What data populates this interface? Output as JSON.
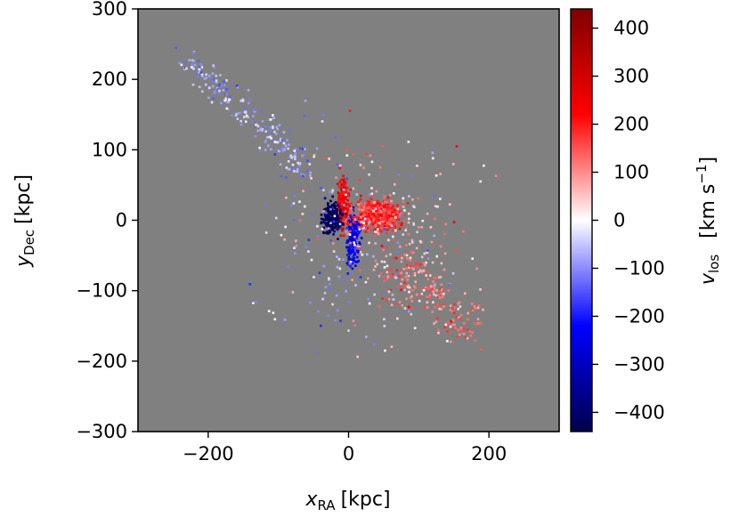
{
  "chart_data": {
    "type": "heatmap",
    "title": "",
    "xlabel": {
      "main": "x",
      "sub": "RA",
      "unit": "[kpc]"
    },
    "ylabel": {
      "main": "y",
      "sub": "Dec",
      "unit": "[kpc]"
    },
    "xlim": [
      -300,
      300
    ],
    "ylim": [
      -300,
      300
    ],
    "xticks": [
      -200,
      0,
      200
    ],
    "xtick_labels": [
      "−200",
      "0",
      "200"
    ],
    "yticks": [
      300,
      200,
      100,
      0,
      -100,
      -200,
      -300
    ],
    "ytick_labels": [
      "300",
      "200",
      "100",
      "0",
      "−100",
      "−200",
      "−300"
    ],
    "background": "#808080",
    "grid": false,
    "colorbar": {
      "label": {
        "main": "v",
        "sub": "los",
        "unit": "[km s",
        "sup": "−1",
        "unit_end": "]"
      },
      "cmap": "seismic",
      "vmin": -440,
      "vmax": 440,
      "ticks": [
        400,
        300,
        200,
        100,
        0,
        -100,
        -200,
        -300,
        -400
      ],
      "tick_labels": [
        "400",
        "300",
        "200",
        "100",
        "0",
        "−100",
        "−200",
        "−300",
        "−400"
      ]
    },
    "structures": [
      {
        "name": "northern-stream",
        "from": [
          -235,
          235
        ],
        "to": [
          -60,
          70
        ],
        "v_los": -80,
        "spread": 10
      },
      {
        "name": "southern-stream",
        "from": [
          60,
          -50
        ],
        "to": [
          170,
          -150
        ],
        "v_los": 120,
        "spread": 16
      },
      {
        "name": "disk-receding",
        "center": [
          -10,
          25
        ],
        "extent": [
          10,
          40
        ],
        "v_los": 240
      },
      {
        "name": "disk-approaching",
        "center": [
          5,
          -25
        ],
        "extent": [
          10,
          40
        ],
        "v_los": -240
      },
      {
        "name": "inner-halo-west",
        "center": [
          -25,
          5
        ],
        "extent": [
          15,
          25
        ],
        "v_los": -420
      },
      {
        "name": "inner-halo-east",
        "center": [
          40,
          10
        ],
        "extent": [
          35,
          25
        ],
        "v_los": 180
      }
    ]
  }
}
